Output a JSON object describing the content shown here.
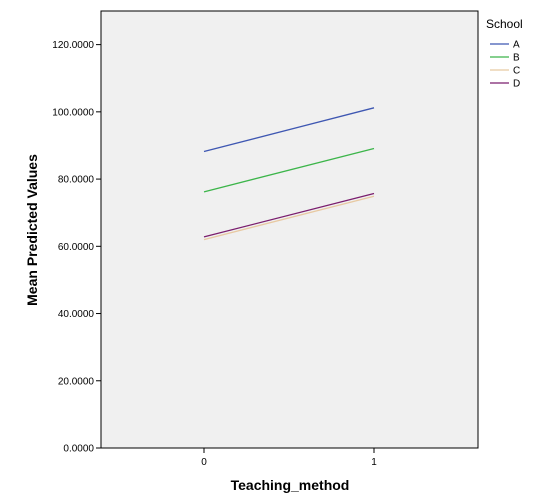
{
  "chart_data": {
    "type": "line",
    "xlabel": "Teaching_method",
    "ylabel": "Mean Predicted Values",
    "categories": [
      "0",
      "1"
    ],
    "ylim": [
      0,
      130
    ],
    "yticks": [
      "0.0000",
      "20.0000",
      "40.0000",
      "60.0000",
      "80.0000",
      "100.0000",
      "120.0000"
    ],
    "ytick_values": [
      0,
      20,
      40,
      60,
      80,
      100,
      120
    ],
    "grid": false,
    "legend_title": "School",
    "legend_position": "top-right",
    "series": [
      {
        "name": "A",
        "values": [
          88.2,
          101.2
        ],
        "color": "#3e57b2"
      },
      {
        "name": "B",
        "values": [
          76.2,
          89.1
        ],
        "color": "#3cb54a"
      },
      {
        "name": "C",
        "values": [
          62.0,
          74.9
        ],
        "color": "#e8c9a2"
      },
      {
        "name": "D",
        "values": [
          62.8,
          75.7
        ],
        "color": "#7a1e6e"
      }
    ]
  }
}
